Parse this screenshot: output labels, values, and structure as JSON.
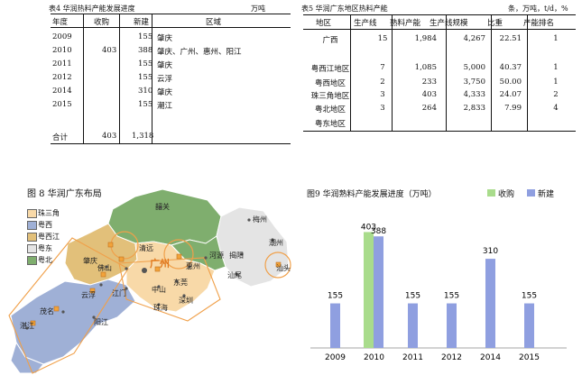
{
  "table4": {
    "title": "表4 华润热料产能发展进度",
    "unit": "万吨",
    "headers": [
      "年度",
      "收购",
      "新建",
      "区域"
    ],
    "rows": [
      {
        "year": "2009",
        "acq": "",
        "new": "155",
        "region": "肇庆"
      },
      {
        "year": "2010",
        "acq": "403",
        "new": "388",
        "region": "肇庆、广州、惠州、阳江"
      },
      {
        "year": "2011",
        "acq": "",
        "new": "155",
        "region": "肇庆"
      },
      {
        "year": "2012",
        "acq": "",
        "new": "155",
        "region": "云浮"
      },
      {
        "year": "2014",
        "acq": "",
        "new": "310",
        "region": "肇庆"
      },
      {
        "year": "2015",
        "acq": "",
        "new": "155",
        "region": "潮江"
      }
    ],
    "total": {
      "label": "合计",
      "acq": "403",
      "new": "1,318"
    }
  },
  "table5": {
    "title": "表5 华润广东地区热料产能",
    "unit": "条，万吨，t/d，%",
    "headers": [
      "地区",
      "生产线",
      "熟料产能",
      "生产线规模",
      "比重",
      "产能排名"
    ],
    "rows": [
      {
        "region": "广西",
        "lines": "15",
        "cap": "1,984",
        "scale": "4,267",
        "share": "22.51",
        "rank": "1"
      },
      {
        "region": "",
        "lines": "",
        "cap": "",
        "scale": "",
        "share": "",
        "rank": ""
      },
      {
        "region": "粤西江地区",
        "lines": "7",
        "cap": "1,085",
        "scale": "5,000",
        "share": "40.37",
        "rank": "1"
      },
      {
        "region": "粤西地区",
        "lines": "2",
        "cap": "233",
        "scale": "3,750",
        "share": "50.00",
        "rank": "1"
      },
      {
        "region": "珠三角地区",
        "lines": "3",
        "cap": "403",
        "scale": "4,333",
        "share": "24.07",
        "rank": "2"
      },
      {
        "region": "粤北地区",
        "lines": "3",
        "cap": "264",
        "scale": "2,833",
        "share": "7.99",
        "rank": "4"
      },
      {
        "region": "粤东地区",
        "lines": "",
        "cap": "",
        "scale": "",
        "share": "",
        "rank": ""
      }
    ]
  },
  "map": {
    "title": "图 8 华润广东布局",
    "legend": [
      {
        "label": "珠三角",
        "color": "#f8d9a8"
      },
      {
        "label": "粤西",
        "color": "#9fb0d6"
      },
      {
        "label": "粤西江",
        "color": "#e2c07a"
      },
      {
        "label": "粤东",
        "color": "#e4e4e4"
      },
      {
        "label": "粤北",
        "color": "#7fae6e"
      }
    ],
    "cities": [
      "韶关",
      "梅州",
      "潮州",
      "汕头",
      "揭阳",
      "汕尾",
      "河源",
      "惠州",
      "东莞",
      "深圳",
      "广州",
      "清远",
      "佛山",
      "肇庆",
      "云浮",
      "江门",
      "中山",
      "珠海",
      "茂名",
      "阳江",
      "湛江"
    ]
  },
  "chart9": {
    "title": "图9 华润熟料产能发展进度（万吨）",
    "legend": [
      "收购",
      "新建"
    ]
  },
  "chart_data": {
    "type": "bar",
    "title": "图9 华润熟料产能发展进度（万吨）",
    "categories": [
      "2009",
      "2010",
      "2011",
      "2012",
      "2014",
      "2015"
    ],
    "series": [
      {
        "name": "收购",
        "values": [
          0,
          403,
          0,
          0,
          0,
          0
        ],
        "color": "#a9dc8c"
      },
      {
        "name": "新建",
        "values": [
          155,
          388,
          155,
          155,
          310,
          155
        ],
        "color": "#8f9fe0"
      }
    ],
    "ylim": [
      0,
      420
    ],
    "grid": false,
    "legend_position": "top-right"
  }
}
